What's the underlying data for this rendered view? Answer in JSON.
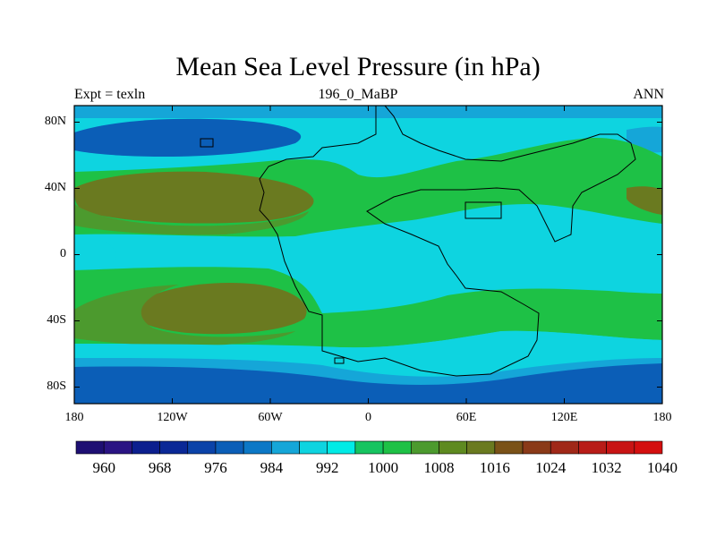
{
  "title": "Mean Sea Level Pressure (in hPa)",
  "subtitle_left": "Expt = texln",
  "subtitle_center": "196_0_MaBP",
  "subtitle_right": "ANN",
  "y_ticks": [
    "80N",
    "40N",
    "0",
    "40S",
    "80S"
  ],
  "y_tick_values": [
    80,
    40,
    0,
    -40,
    -80
  ],
  "x_ticks": [
    "180",
    "120W",
    "60W",
    "0",
    "60E",
    "120E",
    "180"
  ],
  "x_tick_values": [
    -180,
    -120,
    -60,
    0,
    60,
    120,
    180
  ],
  "colorbar_labels": [
    "960",
    "968",
    "976",
    "984",
    "992",
    "1000",
    "1008",
    "1016",
    "1024",
    "1032",
    "1040"
  ],
  "colors": {
    "c960": "#1e0f73",
    "c976": "#0a2896",
    "c984": "#0b5eb7",
    "c988": "#0c78c6",
    "c992": "#15a6d8",
    "c996": "#0ed4e0",
    "c1000": "#00ebe6",
    "c1004": "#16c460",
    "c1008": "#1ec146",
    "c1012": "#4c9a2e",
    "c1016": "#5e8a20",
    "c1020": "#6a7a20",
    "c1024": "#7a5218",
    "c1032": "#a02818",
    "c1040": "#d40f0f"
  }
}
